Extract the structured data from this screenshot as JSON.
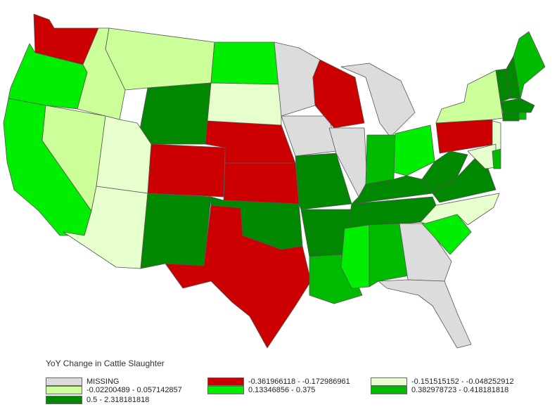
{
  "legend": {
    "title": "YoY Change in Cattle Slaughter",
    "items": [
      {
        "key": "missing",
        "label": "MISSING",
        "color": "#dcdcdc"
      },
      {
        "key": "c1",
        "label": "-0.361966118 - -0.172986961",
        "color": "#cc0000"
      },
      {
        "key": "c2",
        "label": "-0.151515152 - -0.048252912",
        "color": "#e6ffcc"
      },
      {
        "key": "c3",
        "label": "-0.02200489 - 0.057142857",
        "color": "#ccff99"
      },
      {
        "key": "c4",
        "label": "0.13346856 - 0.375",
        "color": "#00ee00"
      },
      {
        "key": "c5",
        "label": "0.382978723 - 0.418181818",
        "color": "#00bb00"
      },
      {
        "key": "c6",
        "label": "0.5 - 2.318181818",
        "color": "#008800"
      }
    ]
  },
  "states": [
    {
      "abbr": "WA",
      "cls": "c1"
    },
    {
      "abbr": "OR",
      "cls": "c4"
    },
    {
      "abbr": "CA",
      "cls": "c4"
    },
    {
      "abbr": "ID",
      "cls": "c3"
    },
    {
      "abbr": "NV",
      "cls": "c3"
    },
    {
      "abbr": "MT",
      "cls": "c3"
    },
    {
      "abbr": "WY",
      "cls": "c6"
    },
    {
      "abbr": "UT",
      "cls": "c2"
    },
    {
      "abbr": "AZ",
      "cls": "c2"
    },
    {
      "abbr": "CO",
      "cls": "c1"
    },
    {
      "abbr": "NM",
      "cls": "c6"
    },
    {
      "abbr": "ND",
      "cls": "c4"
    },
    {
      "abbr": "SD",
      "cls": "c2"
    },
    {
      "abbr": "NE",
      "cls": "c1"
    },
    {
      "abbr": "KS",
      "cls": "c1"
    },
    {
      "abbr": "OK",
      "cls": "c6"
    },
    {
      "abbr": "TX",
      "cls": "c1"
    },
    {
      "abbr": "MN",
      "cls": "missing"
    },
    {
      "abbr": "IA",
      "cls": "missing"
    },
    {
      "abbr": "MO",
      "cls": "c6"
    },
    {
      "abbr": "AR",
      "cls": "c6"
    },
    {
      "abbr": "LA",
      "cls": "c5"
    },
    {
      "abbr": "WI",
      "cls": "c1"
    },
    {
      "abbr": "IL",
      "cls": "missing"
    },
    {
      "abbr": "MI",
      "cls": "missing"
    },
    {
      "abbr": "IN",
      "cls": "c5"
    },
    {
      "abbr": "OH",
      "cls": "c4"
    },
    {
      "abbr": "KY",
      "cls": "c6"
    },
    {
      "abbr": "TN",
      "cls": "c6"
    },
    {
      "abbr": "MS",
      "cls": "c4"
    },
    {
      "abbr": "AL",
      "cls": "c5"
    },
    {
      "abbr": "GA",
      "cls": "missing"
    },
    {
      "abbr": "FL",
      "cls": "missing"
    },
    {
      "abbr": "SC",
      "cls": "c4"
    },
    {
      "abbr": "NC",
      "cls": "c2"
    },
    {
      "abbr": "VA",
      "cls": "c6"
    },
    {
      "abbr": "WV",
      "cls": "c6"
    },
    {
      "abbr": "PA",
      "cls": "c1"
    },
    {
      "abbr": "NY",
      "cls": "c3"
    },
    {
      "abbr": "NJ",
      "cls": "c2"
    },
    {
      "abbr": "MD",
      "cls": "c2"
    },
    {
      "abbr": "DE",
      "cls": "c5"
    },
    {
      "abbr": "VT",
      "cls": "c6"
    },
    {
      "abbr": "NH",
      "cls": "c6"
    },
    {
      "abbr": "ME",
      "cls": "c5"
    },
    {
      "abbr": "MA",
      "cls": "c6"
    },
    {
      "abbr": "CT",
      "cls": "c6"
    },
    {
      "abbr": "RI",
      "cls": "c5"
    }
  ]
}
